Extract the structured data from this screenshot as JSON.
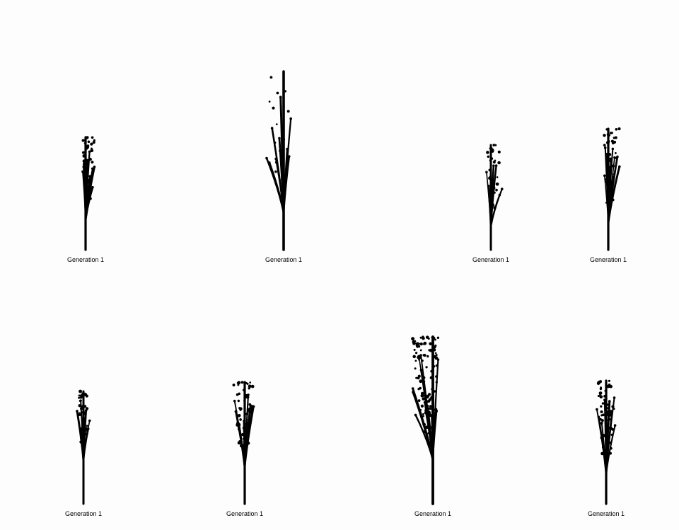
{
  "panels": [
    {
      "label": "Generation 1"
    },
    {
      "label": "Generation 1"
    },
    {
      "label": "Generation 1"
    },
    {
      "label": "Generation 1"
    },
    {
      "label": "Generation 1"
    },
    {
      "label": "Generation 1"
    },
    {
      "label": "Generation 1"
    },
    {
      "label": "Generation 1"
    }
  ],
  "colors": {
    "background": "#fdfdfd",
    "plant": "#000000"
  }
}
